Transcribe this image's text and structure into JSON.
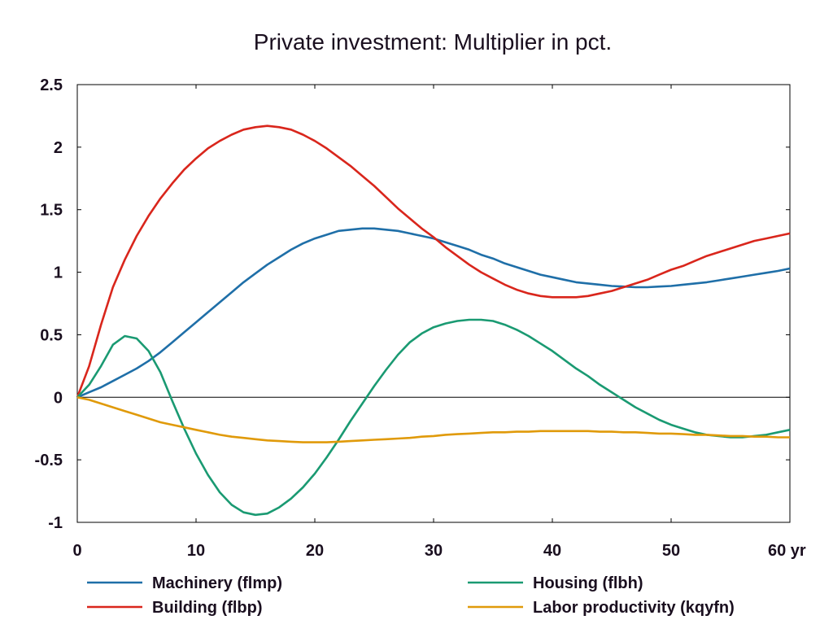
{
  "chart_data": {
    "type": "line",
    "title": "Private investment: Multiplier in pct.",
    "xlabel": "",
    "ylabel": "",
    "x_unit_suffix": "yr",
    "xlim": [
      0,
      60
    ],
    "ylim": [
      -1,
      2.5
    ],
    "xticks": [
      0,
      10,
      20,
      30,
      40,
      50,
      60
    ],
    "yticks": [
      -1,
      -0.5,
      0,
      0.5,
      1,
      1.5,
      2,
      2.5
    ],
    "ytick_labels": [
      "-1",
      "-0.5",
      "0",
      "0.5",
      "1",
      "1.5",
      "2",
      "2.5"
    ],
    "xtick_labels": [
      "0",
      "10",
      "20",
      "30",
      "40",
      "50",
      "60 yr"
    ],
    "grid": false,
    "zero_line": true,
    "legend_position": "bottom",
    "x": [
      0,
      1,
      2,
      3,
      4,
      5,
      6,
      7,
      8,
      9,
      10,
      11,
      12,
      13,
      14,
      15,
      16,
      17,
      18,
      19,
      20,
      21,
      22,
      23,
      24,
      25,
      26,
      27,
      28,
      29,
      30,
      31,
      32,
      33,
      34,
      35,
      36,
      37,
      38,
      39,
      40,
      41,
      42,
      43,
      44,
      45,
      46,
      47,
      48,
      49,
      50,
      51,
      52,
      53,
      54,
      55,
      56,
      57,
      58,
      59,
      60
    ],
    "series": [
      {
        "name": "Machinery (flmp)",
        "color": "#1f6fa8",
        "values": [
          0.0,
          0.04,
          0.08,
          0.13,
          0.18,
          0.23,
          0.29,
          0.36,
          0.44,
          0.52,
          0.6,
          0.68,
          0.76,
          0.84,
          0.92,
          0.99,
          1.06,
          1.12,
          1.18,
          1.23,
          1.27,
          1.3,
          1.33,
          1.34,
          1.35,
          1.35,
          1.34,
          1.33,
          1.31,
          1.29,
          1.27,
          1.24,
          1.21,
          1.18,
          1.14,
          1.11,
          1.07,
          1.04,
          1.01,
          0.98,
          0.96,
          0.94,
          0.92,
          0.91,
          0.9,
          0.89,
          0.885,
          0.88,
          0.88,
          0.885,
          0.89,
          0.9,
          0.91,
          0.92,
          0.935,
          0.95,
          0.965,
          0.98,
          0.995,
          1.01,
          1.03
        ]
      },
      {
        "name": "Building (flbp)",
        "color": "#d9261c",
        "values": [
          0.0,
          0.25,
          0.58,
          0.88,
          1.1,
          1.29,
          1.45,
          1.59,
          1.71,
          1.82,
          1.91,
          1.99,
          2.05,
          2.1,
          2.14,
          2.16,
          2.17,
          2.16,
          2.14,
          2.1,
          2.05,
          1.99,
          1.92,
          1.85,
          1.77,
          1.69,
          1.6,
          1.51,
          1.43,
          1.35,
          1.28,
          1.2,
          1.13,
          1.06,
          1.0,
          0.95,
          0.9,
          0.86,
          0.83,
          0.81,
          0.8,
          0.8,
          0.8,
          0.81,
          0.83,
          0.85,
          0.88,
          0.91,
          0.94,
          0.98,
          1.02,
          1.05,
          1.09,
          1.13,
          1.16,
          1.19,
          1.22,
          1.25,
          1.27,
          1.29,
          1.31
        ]
      },
      {
        "name": "Housing (flbh)",
        "color": "#1a9a72",
        "values": [
          0.0,
          0.1,
          0.25,
          0.42,
          0.49,
          0.47,
          0.37,
          0.2,
          -0.03,
          -0.25,
          -0.45,
          -0.62,
          -0.76,
          -0.86,
          -0.92,
          -0.94,
          -0.93,
          -0.88,
          -0.81,
          -0.72,
          -0.61,
          -0.48,
          -0.34,
          -0.19,
          -0.05,
          0.09,
          0.22,
          0.34,
          0.44,
          0.51,
          0.56,
          0.59,
          0.61,
          0.62,
          0.62,
          0.61,
          0.58,
          0.54,
          0.49,
          0.43,
          0.37,
          0.3,
          0.23,
          0.17,
          0.1,
          0.04,
          -0.02,
          -0.08,
          -0.13,
          -0.18,
          -0.22,
          -0.25,
          -0.28,
          -0.3,
          -0.31,
          -0.32,
          -0.32,
          -0.31,
          -0.3,
          -0.28,
          -0.26
        ]
      },
      {
        "name": "Labor productivity (kqyfn)",
        "color": "#e09a0a",
        "values": [
          0.0,
          -0.02,
          -0.05,
          -0.08,
          -0.11,
          -0.14,
          -0.17,
          -0.2,
          -0.22,
          -0.24,
          -0.26,
          -0.28,
          -0.3,
          -0.315,
          -0.325,
          -0.335,
          -0.345,
          -0.35,
          -0.355,
          -0.36,
          -0.36,
          -0.36,
          -0.355,
          -0.35,
          -0.345,
          -0.34,
          -0.335,
          -0.33,
          -0.325,
          -0.315,
          -0.31,
          -0.3,
          -0.295,
          -0.29,
          -0.285,
          -0.28,
          -0.28,
          -0.275,
          -0.275,
          -0.27,
          -0.27,
          -0.27,
          -0.27,
          -0.27,
          -0.275,
          -0.275,
          -0.28,
          -0.28,
          -0.285,
          -0.29,
          -0.29,
          -0.295,
          -0.3,
          -0.3,
          -0.305,
          -0.31,
          -0.31,
          -0.315,
          -0.315,
          -0.32,
          -0.32
        ]
      }
    ]
  }
}
